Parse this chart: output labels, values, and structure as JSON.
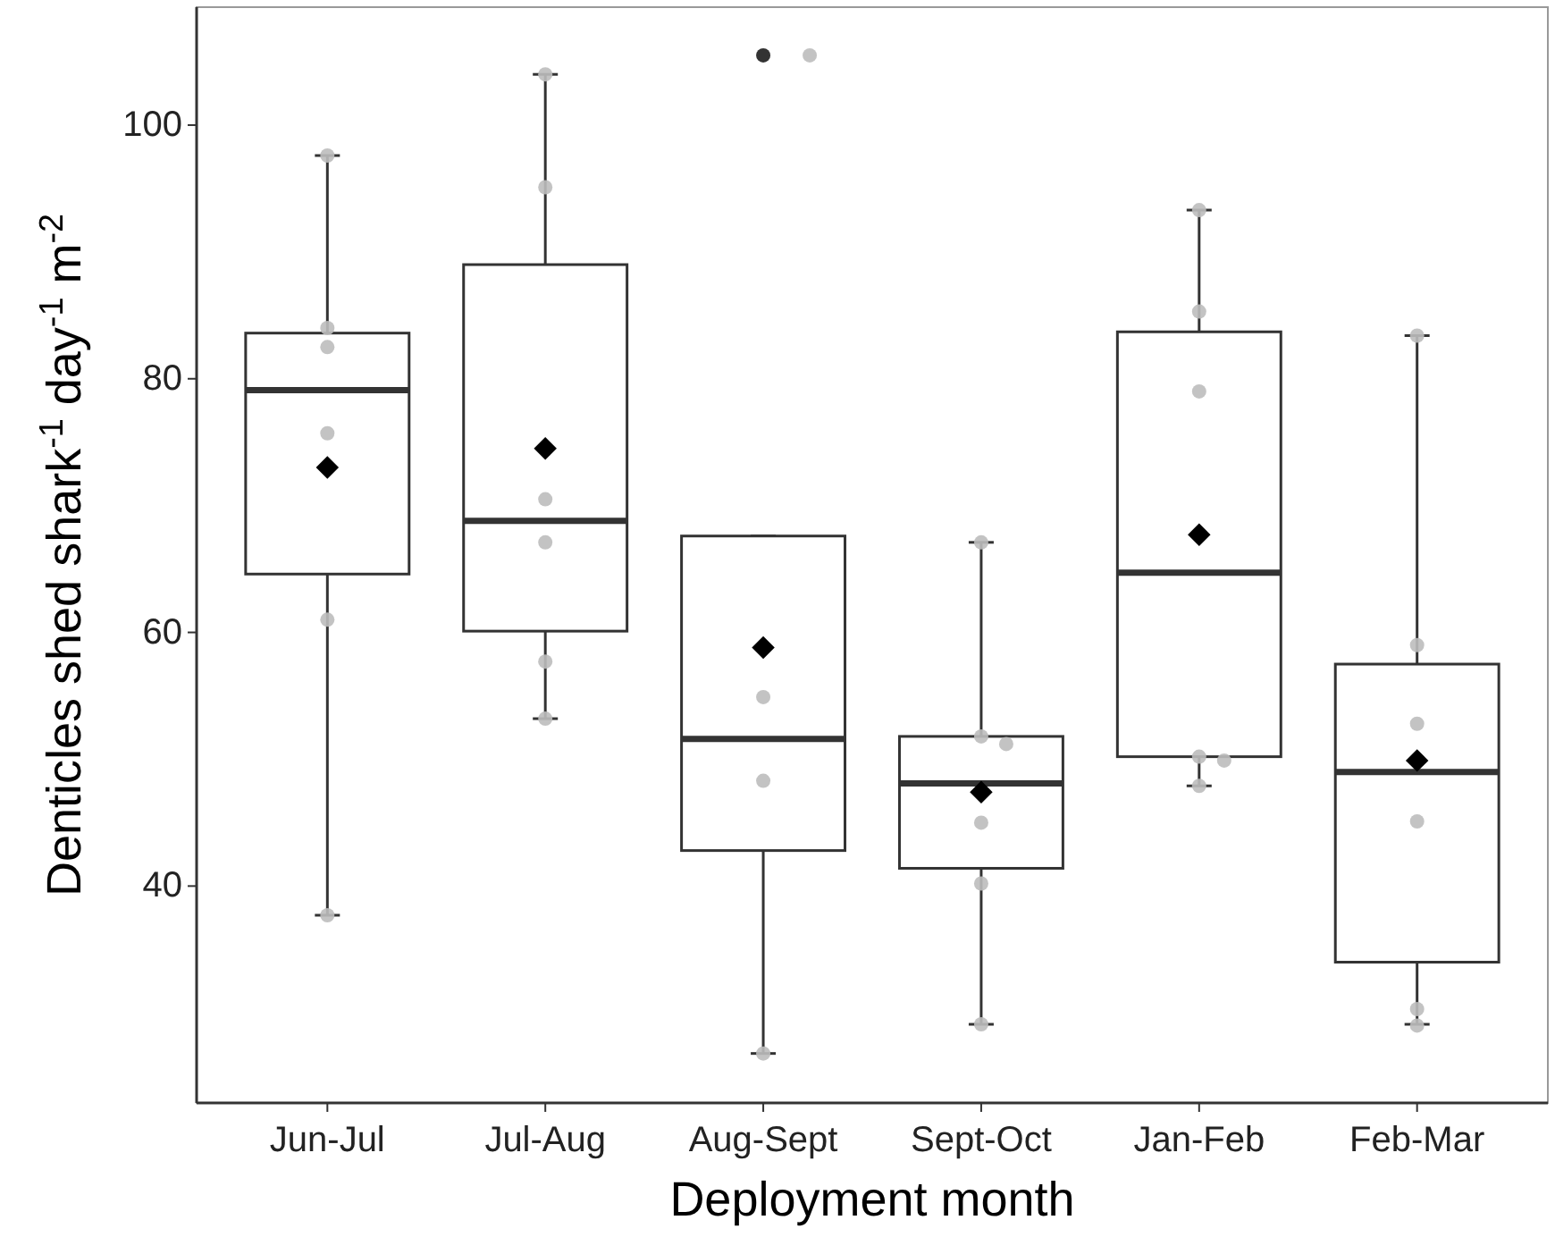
{
  "chart_data": {
    "type": "box",
    "xlabel": "Deployment month",
    "ylabel": "Denticles shed shark$^{-1}$ day$^{-1}$ m$^{-2}$",
    "categories": [
      "Jun-Jul",
      "Jul-Aug",
      "Aug-Sept",
      "Sept-Oct",
      "Jan-Feb",
      "Feb-Mar"
    ],
    "ylim": [
      22.9,
      109.3
    ],
    "yticks": [
      40,
      60,
      80,
      100
    ],
    "grid": false,
    "boxes": [
      {
        "low": 37.7,
        "q1": 64.6,
        "median": 79.1,
        "q3": 83.6,
        "high": 97.6,
        "mean": 73.0
      },
      {
        "low": 53.2,
        "q1": 60.1,
        "median": 68.8,
        "q3": 89.0,
        "high": 104.0,
        "mean": 74.5
      },
      {
        "low": 26.8,
        "q1": 42.8,
        "median": 51.6,
        "q3": 67.6,
        "high": 67.6,
        "mean": 58.8,
        "outliers": [
          105.5
        ]
      },
      {
        "low": 29.1,
        "q1": 41.4,
        "median": 48.1,
        "q3": 51.8,
        "high": 67.1,
        "mean": 47.4
      },
      {
        "low": 47.9,
        "q1": 50.2,
        "median": 64.7,
        "q3": 83.7,
        "high": 93.3,
        "mean": 67.7
      },
      {
        "low": 29.1,
        "q1": 34.0,
        "median": 49.0,
        "q3": 57.5,
        "high": 83.4,
        "mean": 49.9
      }
    ],
    "series": [
      {
        "type": "scatter",
        "color": "#bdbdbd",
        "marker": "circle",
        "x": [
          "Jun-Jul",
          "Jun-Jul",
          "Jun-Jul",
          "Jun-Jul",
          "Jun-Jul",
          "Jun-Jul",
          "Jul-Aug",
          "Jul-Aug",
          "Jul-Aug",
          "Jul-Aug",
          "Jul-Aug",
          "Jul-Aug",
          "Aug-Sept",
          "Aug-Sept",
          "Aug-Sept",
          "Aug-Sept",
          "Sept-Oct",
          "Sept-Oct",
          "Sept-Oct",
          "Sept-Oct",
          "Sept-Oct",
          "Sept-Oct",
          "Jan-Feb",
          "Jan-Feb",
          "Jan-Feb",
          "Jan-Feb",
          "Jan-Feb",
          "Jan-Feb",
          "Feb-Mar",
          "Feb-Mar",
          "Feb-Mar",
          "Feb-Mar",
          "Feb-Mar",
          "Feb-Mar"
        ],
        "values": [
          37.7,
          61.0,
          75.7,
          82.5,
          84.0,
          97.6,
          104.0,
          95.1,
          70.5,
          67.1,
          57.7,
          53.2,
          105.5,
          54.9,
          48.3,
          26.8,
          67.1,
          51.8,
          51.2,
          45.0,
          40.2,
          29.1,
          93.3,
          85.3,
          79.0,
          50.2,
          49.9,
          47.9,
          83.4,
          59.0,
          52.8,
          45.1,
          30.3,
          29.0
        ]
      }
    ]
  }
}
